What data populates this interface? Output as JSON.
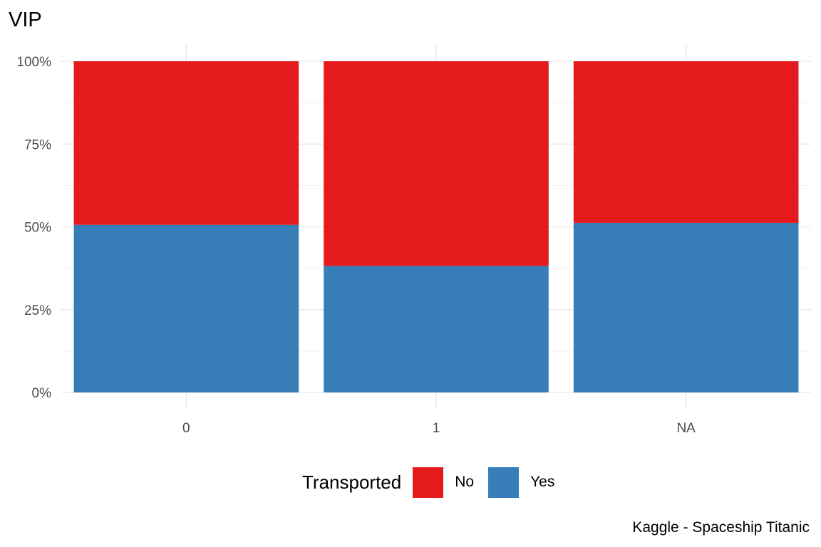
{
  "title": "VIP",
  "caption": "Kaggle - Spaceship Titanic",
  "legend": {
    "title": "Transported",
    "items": [
      {
        "label": "No",
        "color": "#E41A1C"
      },
      {
        "label": "Yes",
        "color": "#377EB8"
      }
    ]
  },
  "chart_data": {
    "type": "bar",
    "stacked": true,
    "normalized": true,
    "title": "VIP",
    "xlabel": "",
    "ylabel": "",
    "categories": [
      "0",
      "1",
      "NA"
    ],
    "ylim": [
      0,
      1
    ],
    "yticks": [
      0,
      0.25,
      0.5,
      0.75,
      1
    ],
    "ytick_labels": [
      "0%",
      "25%",
      "50%",
      "75%",
      "100%"
    ],
    "series": [
      {
        "name": "Yes",
        "color": "#377EB8",
        "values": [
          0.506,
          0.382,
          0.512
        ]
      },
      {
        "name": "No",
        "color": "#E41A1C",
        "values": [
          0.494,
          0.618,
          0.488
        ]
      }
    ],
    "grid": true,
    "legend_position": "bottom"
  }
}
